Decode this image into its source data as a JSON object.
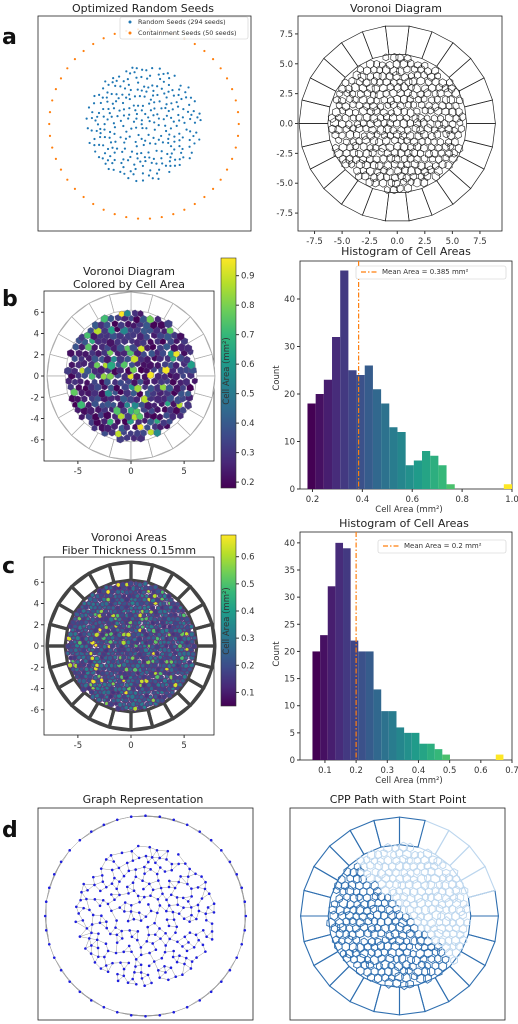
{
  "panel_letters": [
    "a",
    "b",
    "c",
    "d"
  ],
  "colors": {
    "random_seed": "#1f77b4",
    "containment_seed": "#ff7f0e",
    "mean_line": "#ff7f0e",
    "graph_node": "#1f1fdd",
    "graph_edge": "#9a9a9a",
    "cpp_edge": "#2f6fb0",
    "cpp_edge_light": "#bcd6ee",
    "fiber": "#444444"
  },
  "viridis": [
    "#440154",
    "#482878",
    "#3e4989",
    "#31688e",
    "#26828e",
    "#1f9e89",
    "#35b779",
    "#6ece58",
    "#b5de2b",
    "#fde725"
  ],
  "chart_data": [
    {
      "id": "a-left",
      "type": "scatter",
      "title": "Optimized Random Seeds",
      "axes_visible": false,
      "legend_position": "upper-right",
      "series": [
        {
          "name": "Random Seeds (294 seeds)",
          "count": 294,
          "region": "disk",
          "radius": 5.6
        },
        {
          "name": "Containment Seeds (50 seeds)",
          "count": 50,
          "region": "ring",
          "radius": 9.2
        }
      ]
    },
    {
      "id": "a-right",
      "type": "diagram",
      "title": "Voronoi Diagram",
      "xlim": [
        -9,
        9.5
      ],
      "ylim": [
        -9,
        9
      ],
      "xticks": [
        "-7.5",
        "-5.0",
        "-2.5",
        "0.0",
        "2.5",
        "5.0",
        "7.5"
      ],
      "yticks": [
        "7.5",
        "5.0",
        "2.5",
        "0.0",
        "-2.5",
        "-5.0",
        "-7.5"
      ]
    },
    {
      "id": "b-left",
      "type": "heatmap",
      "title": [
        "Voronoi Diagram",
        "Colored by Cell Area"
      ],
      "xticks": [
        "-5",
        "0",
        "5"
      ],
      "yticks": [
        "6",
        "4",
        "2",
        "0",
        "-2",
        "-4",
        "-6"
      ],
      "colorbar_label": "Cell Area (mm²)",
      "colorbar_ticks": [
        "0.9",
        "0.8",
        "0.7",
        "0.6",
        "0.5",
        "0.4",
        "0.3",
        "0.2"
      ],
      "colorbar_range": [
        0.18,
        0.96
      ]
    },
    {
      "id": "b-right",
      "type": "bar",
      "title": "Histogram of Cell Areas",
      "xlabel": "Cell Area (mm²)",
      "ylabel": "Count",
      "xlim": [
        0.15,
        1.0
      ],
      "ylim": [
        0,
        48
      ],
      "xticks": [
        "0.2",
        "0.4",
        "0.6",
        "0.8",
        "1.0"
      ],
      "yticks": [
        "0",
        "10",
        "20",
        "30",
        "40"
      ],
      "bin_start": 0.18,
      "bin_width": 0.0328,
      "values": [
        18,
        20,
        23,
        32,
        46,
        25,
        24,
        26,
        21,
        18,
        13,
        12,
        5,
        6,
        8,
        7,
        5,
        1,
        0,
        0,
        0,
        0,
        0,
        0,
        1
      ],
      "mean_value": 0.385,
      "mean_label": "Mean Area = 0.385 mm²"
    },
    {
      "id": "c-left",
      "type": "heatmap",
      "title": [
        "Voronoi Areas",
        "Fiber Thickness 0.15mm"
      ],
      "xticks": [
        "-5",
        "0",
        "5"
      ],
      "yticks": [
        "6",
        "4",
        "2",
        "0",
        "-2",
        "-4",
        "-6"
      ],
      "colorbar_label": "Cell Area (mm²)",
      "colorbar_ticks": [
        "0.6",
        "0.5",
        "0.4",
        "0.3",
        "0.2",
        "0.1"
      ],
      "colorbar_range": [
        0.05,
        0.68
      ]
    },
    {
      "id": "c-right",
      "type": "bar",
      "title": "Histogram of Cell Areas",
      "xlabel": "Cell Area (mm²)",
      "ylabel": "Count",
      "xlim": [
        0.02,
        0.7
      ],
      "ylim": [
        0,
        42
      ],
      "xticks": [
        "0.1",
        "0.2",
        "0.3",
        "0.4",
        "0.5",
        "0.6",
        "0.7"
      ],
      "yticks": [
        "0",
        "5",
        "10",
        "15",
        "20",
        "25",
        "30",
        "35",
        "40"
      ],
      "bin_start": 0.06,
      "bin_width": 0.0245,
      "values": [
        20,
        23,
        32,
        40,
        39,
        22,
        20,
        20,
        13,
        9,
        9,
        6,
        5,
        5,
        3,
        3,
        2,
        1,
        0,
        0,
        0,
        0,
        0,
        0,
        1
      ],
      "mean_value": 0.2,
      "mean_label": "Mean Area = 0.2 mm²"
    },
    {
      "id": "d-left",
      "type": "diagram",
      "title": "Graph Representation",
      "axes_visible": false
    },
    {
      "id": "d-right",
      "type": "diagram",
      "title": "CPP Path with Start Point",
      "axes_visible": false
    }
  ]
}
